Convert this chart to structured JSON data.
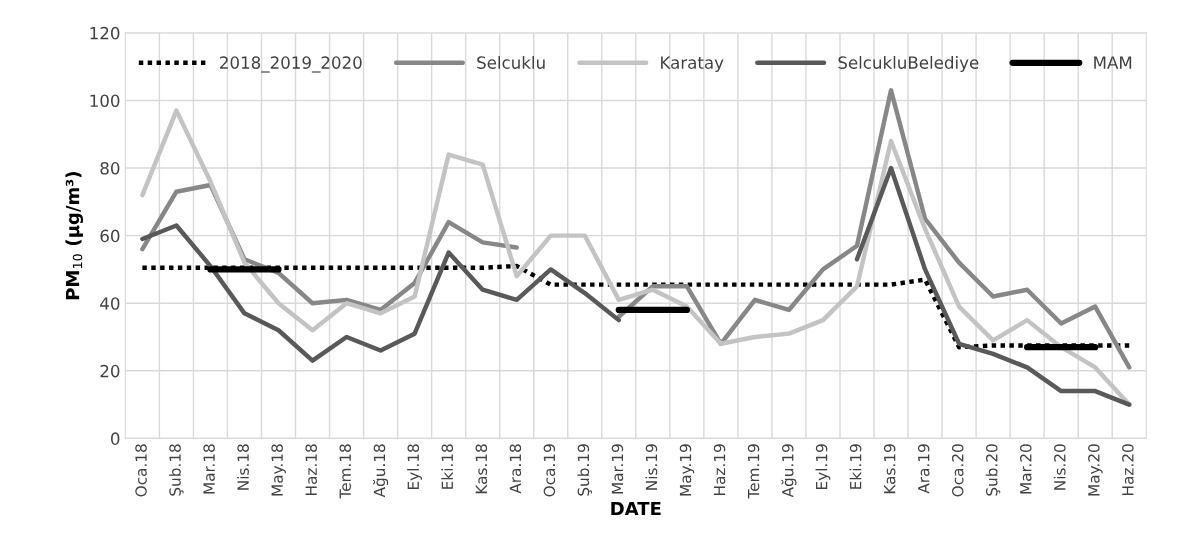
{
  "chart_data": {
    "type": "line",
    "xlabel": "DATE",
    "ylabel": "PM$_{10}$ (µg/m³)",
    "categories": [
      "Oca.18",
      "Şub.18",
      "Mar.18",
      "Nis.18",
      "May.18",
      "Haz.18",
      "Tem.18",
      "Ağu.18",
      "Eyl.18",
      "Eki.18",
      "Kas.18",
      "Ara.18",
      "Oca.19",
      "Şub.19",
      "Mar.19",
      "Nis.19",
      "May.19",
      "Haz.19",
      "Tem.19",
      "Ağu.19",
      "Eyl.19",
      "Eki.19",
      "Kas.19",
      "Ara.19",
      "Oca.20",
      "Şub.20",
      "Mar.20",
      "Nis.20",
      "May.20",
      "Haz.20"
    ],
    "series": [
      {
        "name": "2018_2019_2020",
        "color": "#000000",
        "line_style": "dotted",
        "values": [
          50.5,
          50.5,
          50.5,
          50.5,
          50.5,
          50.5,
          50.5,
          50.5,
          50.5,
          50.5,
          50.5,
          51,
          45.5,
          45.5,
          45.5,
          45.5,
          45.5,
          45.5,
          45.5,
          45.5,
          45.5,
          45.5,
          45.5,
          47,
          27,
          27.5,
          27.5,
          27.5,
          27.5,
          27.5
        ]
      },
      {
        "name": "Selcuklu",
        "color": "#878787",
        "line_style": "solid",
        "values": [
          56,
          73,
          75,
          53,
          49,
          40,
          41,
          38,
          46,
          64,
          58,
          56.5,
          null,
          null,
          36,
          45,
          45,
          28,
          41,
          38,
          50,
          57,
          103,
          65,
          52,
          42,
          44,
          34,
          39,
          21
        ]
      },
      {
        "name": "Karatay",
        "color": "#c3c3c3",
        "line_style": "solid",
        "values": [
          72,
          97,
          76,
          52,
          40,
          32,
          40,
          37,
          42,
          84,
          81,
          48,
          60,
          60,
          41,
          44,
          39,
          28,
          30,
          31,
          35,
          45,
          88,
          62,
          39,
          29,
          35,
          27,
          21,
          10
        ]
      },
      {
        "name": "SelcukluBelediye",
        "color": "#595959",
        "line_style": "solid",
        "values": [
          59,
          63,
          51,
          37,
          32,
          23,
          30,
          26,
          31,
          55,
          44,
          41,
          50,
          43,
          35,
          null,
          null,
          null,
          null,
          null,
          null,
          53,
          80,
          50,
          28,
          25,
          21,
          14,
          14,
          10
        ]
      },
      {
        "name": "MAM",
        "color": "#000000",
        "line_style": "solid",
        "values": [
          null,
          null,
          50,
          50,
          50,
          null,
          null,
          null,
          null,
          null,
          null,
          null,
          null,
          null,
          38,
          38,
          38,
          null,
          null,
          null,
          null,
          null,
          null,
          null,
          null,
          null,
          27,
          27,
          27,
          null
        ]
      }
    ],
    "ylim": [
      0,
      120
    ],
    "yticks": [
      0,
      20,
      40,
      60,
      80,
      100,
      120
    ],
    "grid": true,
    "legend": "top",
    "marker": "none"
  }
}
